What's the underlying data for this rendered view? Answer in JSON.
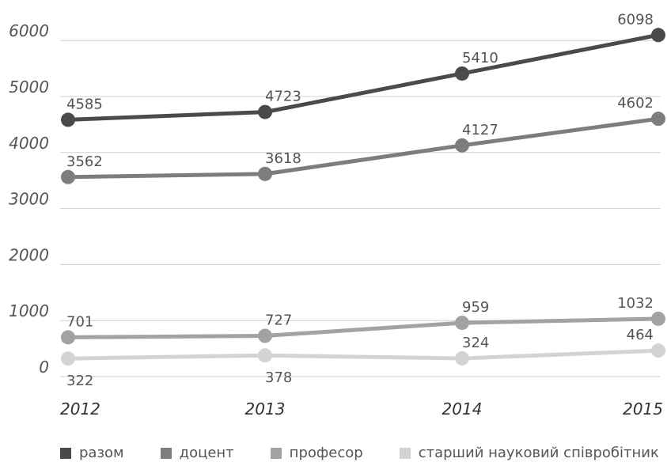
{
  "chart_data": {
    "type": "line",
    "title": "",
    "xlabel": "",
    "ylabel": "",
    "x": [
      "2012",
      "2013",
      "2014",
      "2015"
    ],
    "yticks": [
      "0",
      "1000",
      "2000",
      "3000",
      "4000",
      "5000",
      "6000"
    ],
    "ylim": [
      0,
      6250
    ],
    "grid": true,
    "legend_position": "bottom",
    "series": [
      {
        "name": "разом",
        "values": [
          4585,
          4723,
          5410,
          6098
        ],
        "labels": [
          "4585",
          "4723",
          "5410",
          "6098"
        ],
        "color": "#4a4a4a"
      },
      {
        "name": "доцент",
        "values": [
          3562,
          3618,
          4127,
          4602
        ],
        "labels": [
          "3562",
          "3618",
          "4127",
          "4602"
        ],
        "color": "#7d7d7d"
      },
      {
        "name": "професор",
        "values": [
          701,
          727,
          959,
          1032
        ],
        "labels": [
          "701",
          "727",
          "959",
          "1032"
        ],
        "color": "#a2a2a2"
      },
      {
        "name": "старший науковий співробітник",
        "values": [
          322,
          378,
          324,
          464
        ],
        "labels": [
          "322",
          "378",
          "324",
          "464"
        ],
        "color": "#d3d3d3"
      }
    ]
  }
}
